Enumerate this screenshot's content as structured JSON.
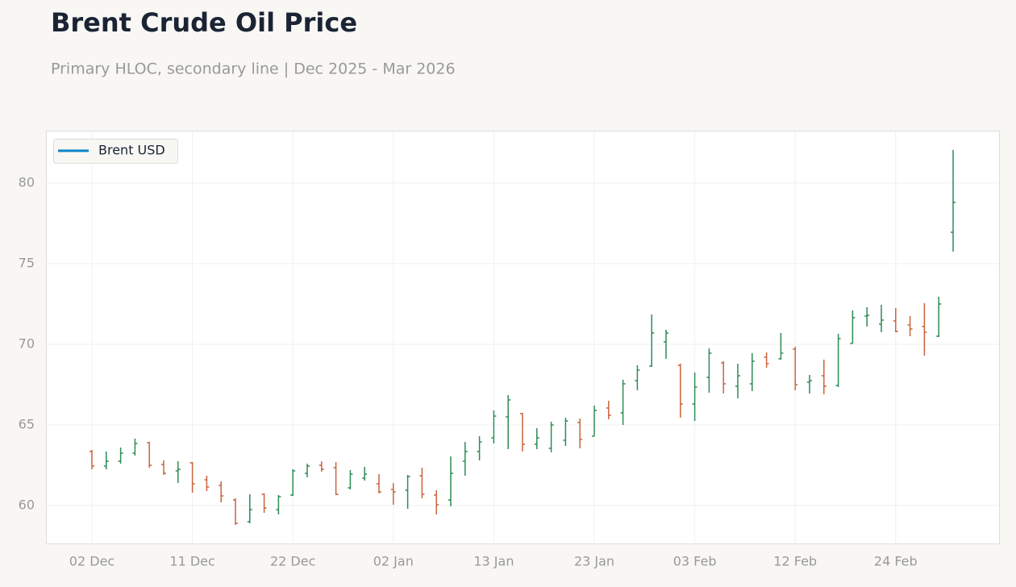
{
  "chart_data": {
    "type": "ohlc",
    "title": "Brent Crude Oil Price",
    "subtitle": "Primary HLOC, secondary line | Dec 2025 - Mar 2026",
    "categories": [
      "02 Dec",
      null,
      null,
      null,
      null,
      null,
      null,
      "11 Dec",
      null,
      null,
      null,
      null,
      null,
      null,
      "22 Dec",
      null,
      null,
      null,
      null,
      null,
      null,
      "02 Jan",
      null,
      null,
      null,
      null,
      null,
      null,
      "13 Jan",
      null,
      null,
      null,
      null,
      null,
      null,
      "23 Jan",
      null,
      null,
      null,
      null,
      null,
      null,
      "03 Feb",
      null,
      null,
      null,
      null,
      null,
      null,
      "12 Feb",
      null,
      null,
      null,
      null,
      null,
      null,
      "24 Feb",
      null,
      null,
      null,
      null
    ],
    "open": [
      63.35,
      62.45,
      62.75,
      63.25,
      63.9,
      62.55,
      62.15,
      62.65,
      61.6,
      61.25,
      60.35,
      59.0,
      60.7,
      59.75,
      60.65,
      62.0,
      62.5,
      62.35,
      61.1,
      61.7,
      61.35,
      61.0,
      60.95,
      61.85,
      60.65,
      60.35,
      62.75,
      63.35,
      64.2,
      65.5,
      65.7,
      63.8,
      63.55,
      64.05,
      65.15,
      64.3,
      66.05,
      65.75,
      67.75,
      68.65,
      70.15,
      68.7,
      66.3,
      67.95,
      68.85,
      67.4,
      67.55,
      69.2,
      69.1,
      69.7,
      67.65,
      68.05,
      67.45,
      70.05,
      71.75,
      71.25,
      71.45,
      71.2,
      71.1,
      70.5,
      76.95
    ],
    "high": [
      63.45,
      63.35,
      63.6,
      64.15,
      63.95,
      62.8,
      62.75,
      62.7,
      61.85,
      61.5,
      60.45,
      60.7,
      60.75,
      60.65,
      62.25,
      62.6,
      62.75,
      62.7,
      62.2,
      62.4,
      61.95,
      61.4,
      61.9,
      62.35,
      60.95,
      63.05,
      63.95,
      64.3,
      65.9,
      66.85,
      65.75,
      64.8,
      65.2,
      65.45,
      65.4,
      66.2,
      66.5,
      67.8,
      68.7,
      71.85,
      70.9,
      68.8,
      68.25,
      69.75,
      68.95,
      68.8,
      69.45,
      69.5,
      70.7,
      69.85,
      68.1,
      69.05,
      70.65,
      72.1,
      72.3,
      72.45,
      72.25,
      71.75,
      72.55,
      72.95,
      82.05
    ],
    "low": [
      62.25,
      62.25,
      62.6,
      63.1,
      62.35,
      61.9,
      61.4,
      60.8,
      60.9,
      60.2,
      58.8,
      58.9,
      59.55,
      59.45,
      60.6,
      61.75,
      62.1,
      60.65,
      61.0,
      61.55,
      60.75,
      60.05,
      59.8,
      60.45,
      59.45,
      59.95,
      61.85,
      62.8,
      63.85,
      63.5,
      63.35,
      63.5,
      63.3,
      63.7,
      63.55,
      64.3,
      65.35,
      65.0,
      67.15,
      68.6,
      69.1,
      65.45,
      65.25,
      67.0,
      66.95,
      66.65,
      67.1,
      68.55,
      69.05,
      67.15,
      66.95,
      66.9,
      67.35,
      70.05,
      71.1,
      70.75,
      70.75,
      70.5,
      69.3,
      70.45,
      75.75
    ],
    "close": [
      62.45,
      62.75,
      63.25,
      63.85,
      62.5,
      62.0,
      62.25,
      61.35,
      61.15,
      60.6,
      58.9,
      59.75,
      59.85,
      60.55,
      62.15,
      62.45,
      62.25,
      60.7,
      61.95,
      61.95,
      60.85,
      60.85,
      61.8,
      60.7,
      60.05,
      62.0,
      63.35,
      63.95,
      65.55,
      66.55,
      63.8,
      64.2,
      65.0,
      65.25,
      64.1,
      65.9,
      65.6,
      67.55,
      68.4,
      70.7,
      70.7,
      66.3,
      67.35,
      69.45,
      67.55,
      68.05,
      68.95,
      68.8,
      69.45,
      67.5,
      67.75,
      67.4,
      70.35,
      71.65,
      71.8,
      71.5,
      70.8,
      70.95,
      70.75,
      72.5,
      78.8
    ],
    "up_color": "#2e8b57",
    "down_color": "#c8643c",
    "legend": {
      "name": "Brent USD",
      "color": "#0a84c6",
      "position": "upper left"
    },
    "ylim": [
      57.6,
      83.2
    ],
    "yticks": [
      60,
      65,
      70,
      75,
      80
    ],
    "grid": true
  }
}
